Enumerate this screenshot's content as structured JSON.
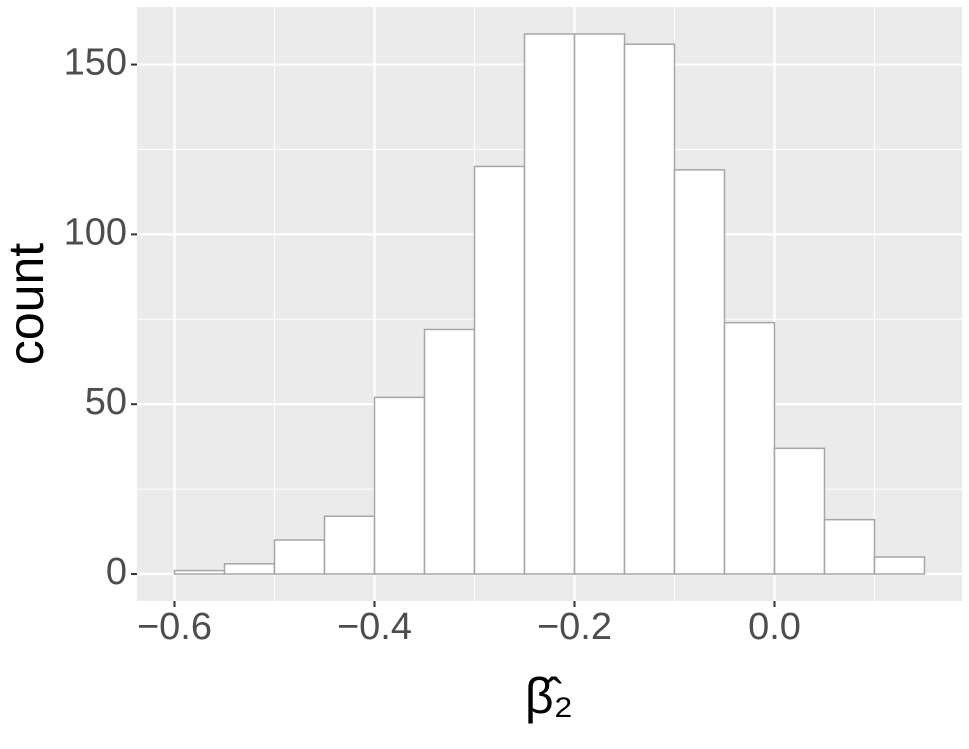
{
  "chart_data": {
    "type": "histogram",
    "xlabel": "β̂₂",
    "ylabel": "count",
    "bins": [
      -0.6,
      -0.55,
      -0.5,
      -0.45,
      -0.4,
      -0.35,
      -0.3,
      -0.25,
      -0.2,
      -0.15,
      -0.1,
      -0.05,
      0.0,
      0.05,
      0.1,
      0.15
    ],
    "counts": [
      1,
      3,
      10,
      17,
      52,
      72,
      120,
      159,
      159,
      156,
      119,
      74,
      37,
      16,
      5
    ],
    "fill": "#ffffff",
    "edgecolor": "#a6a6a6",
    "xlim": [
      -0.6375,
      0.1875
    ],
    "ylim": [
      -7.95,
      166.95
    ],
    "xticks": [
      {
        "value": -0.6,
        "label": "−0.6"
      },
      {
        "value": -0.4,
        "label": "−0.4"
      },
      {
        "value": -0.2,
        "label": "−0.2"
      },
      {
        "value": 0.0,
        "label": "0.0"
      }
    ],
    "yticks": [
      0,
      50,
      100,
      150
    ],
    "x_minor_grid": [
      -0.5,
      -0.3,
      -0.1,
      0.1
    ],
    "y_minor_grid": [
      25,
      75,
      125
    ],
    "grid": true,
    "panel_color": "#ebebeb"
  }
}
